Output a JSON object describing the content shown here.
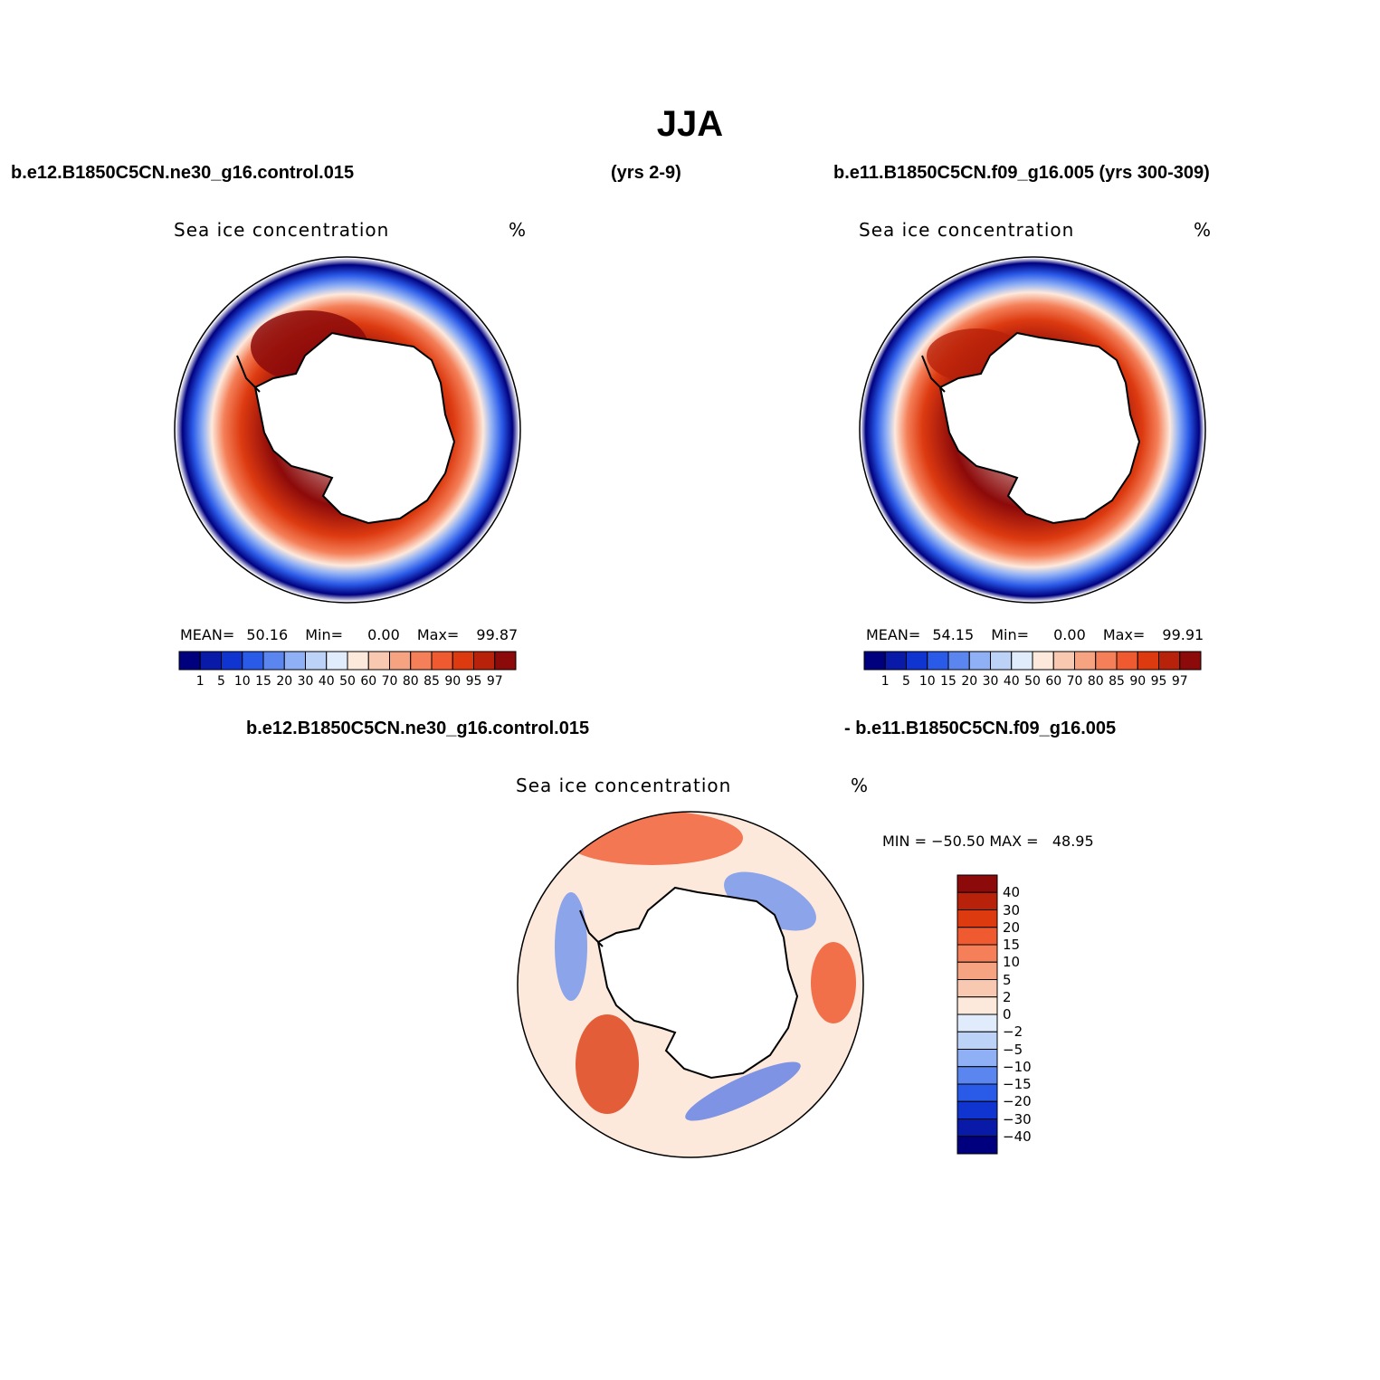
{
  "title": "JJA",
  "top_left_case": "b.e12.B1850C5CN.ne30_g16.control.015",
  "top_mid_years": "(yrs 2-9)",
  "top_right_case": "b.e11.B1850C5CN.f09_g16.005 (yrs 300-309)",
  "panel_title": "Sea ice concentration",
  "units": "%",
  "stat_labels": {
    "mean": "MEAN=",
    "min": "Min=",
    "max": "Max="
  },
  "left_stats": {
    "mean": "50.16",
    "min": "0.00",
    "max": "99.87"
  },
  "right_stats": {
    "mean": "54.15",
    "min": "0.00",
    "max": "99.91"
  },
  "diff_case_a": "b.e12.B1850C5CN.ne30_g16.control.015",
  "diff_case_b": "- b.e11.B1850C5CN.f09_g16.005",
  "diff_minmax": "MIN = −50.50 MAX =   48.95",
  "colors": {
    "abs_scale": [
      "#00007f",
      "#0a1aa8",
      "#0f34d0",
      "#2a5ae8",
      "#5b86f0",
      "#8fb0f5",
      "#bdd2f7",
      "#e0ecfb",
      "#fde9dc",
      "#f9c8b0",
      "#f6a382",
      "#f47f58",
      "#ef5a30",
      "#dd3a10",
      "#b8220a",
      "#8c0a0a"
    ],
    "diff_scale": [
      "#00007f",
      "#0a1aa8",
      "#0f34d0",
      "#2a5ae8",
      "#5b86f0",
      "#8fb0f5",
      "#bdd2f7",
      "#e0ecfb",
      "#fde9dc",
      "#f9c8b0",
      "#f6a382",
      "#f47f58",
      "#ef5a30",
      "#dd3a10",
      "#b8220a",
      "#8c0a0a"
    ]
  },
  "chart_data": [
    {
      "type": "heatmap",
      "title": "Sea ice concentration",
      "units": "%",
      "projection": "south polar stereographic",
      "colorbar": [
        "1",
        "5",
        "10",
        "15",
        "20",
        "30",
        "40",
        "50",
        "60",
        "70",
        "80",
        "85",
        "90",
        "95",
        "97"
      ],
      "mean": 50.16,
      "min": 0.0,
      "max": 99.87
    },
    {
      "type": "heatmap",
      "title": "Sea ice concentration",
      "units": "%",
      "projection": "south polar stereographic",
      "colorbar": [
        "1",
        "5",
        "10",
        "15",
        "20",
        "30",
        "40",
        "50",
        "60",
        "70",
        "80",
        "85",
        "90",
        "95",
        "97"
      ],
      "mean": 54.15,
      "min": 0.0,
      "max": 99.91
    },
    {
      "type": "heatmap",
      "title": "Sea ice concentration",
      "units": "%",
      "projection": "south polar stereographic",
      "colorbar": [
        "40",
        "30",
        "20",
        "15",
        "10",
        "5",
        "2",
        "0",
        "−2",
        "−5",
        "−10",
        "−15",
        "−20",
        "−30",
        "−40"
      ],
      "min": -50.5,
      "max": 48.95
    }
  ]
}
